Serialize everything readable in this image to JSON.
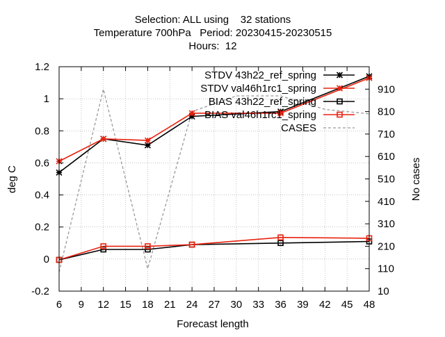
{
  "chart_data": {
    "type": "line",
    "title_lines": [
      "Selection: ALL using    32 stations",
      "Temperature 700hPa   Period: 20230415-20230515",
      "Hours:  12"
    ],
    "xlabel": "Forecast length",
    "ylabel": "deg C",
    "y2label": "No cases",
    "xlim": [
      6,
      48
    ],
    "ylim": [
      -0.2,
      1.2
    ],
    "y2lim": [
      10,
      1010
    ],
    "x_ticks": [
      "6",
      "9",
      "12",
      "15",
      "18",
      "21",
      "24",
      "27",
      "30",
      "33",
      "36",
      "39",
      "42",
      "45",
      "48"
    ],
    "y_ticks": [
      "-0.2",
      "0",
      "0.2",
      "0.4",
      "0.6",
      "0.8",
      "1",
      "1.2"
    ],
    "y2_ticks": [
      "10",
      "110",
      "210",
      "310",
      "410",
      "510",
      "610",
      "710",
      "810",
      "910"
    ],
    "grid": true,
    "legend_position": "top-right",
    "series": [
      {
        "name": "STDV 43h22_ref_spring",
        "axis": "y",
        "color": "#000000",
        "marker": "star",
        "dash": "",
        "x": [
          6,
          12,
          18,
          24,
          36,
          48
        ],
        "values": [
          0.54,
          0.75,
          0.71,
          0.89,
          0.92,
          1.14
        ]
      },
      {
        "name": "STDV val46h1rc1_spring",
        "axis": "y",
        "color": "#e8220f",
        "marker": "star",
        "dash": "",
        "x": [
          6,
          12,
          18,
          24,
          36,
          48
        ],
        "values": [
          0.61,
          0.75,
          0.74,
          0.91,
          0.91,
          1.13
        ]
      },
      {
        "name": "BIAS 43h22_ref_spring",
        "axis": "y",
        "color": "#000000",
        "marker": "square",
        "dash": "",
        "x": [
          6,
          12,
          18,
          24,
          36,
          48
        ],
        "values": [
          -0.005,
          0.06,
          0.06,
          0.09,
          0.1,
          0.11
        ]
      },
      {
        "name": "BIAS val46h1rc1_spring",
        "axis": "y",
        "color": "#e8220f",
        "marker": "square",
        "dash": "",
        "x": [
          6,
          12,
          18,
          24,
          36,
          48
        ],
        "values": [
          -0.005,
          0.08,
          0.08,
          0.09,
          0.135,
          0.13
        ]
      },
      {
        "name": "CASES",
        "axis": "y2",
        "color": "#999999",
        "marker": "none",
        "dash": "4,3",
        "x": [
          6,
          12,
          18,
          24,
          30,
          36,
          42,
          48
        ],
        "values": [
          95,
          910,
          110,
          810,
          880,
          880,
          820,
          800
        ]
      }
    ]
  }
}
